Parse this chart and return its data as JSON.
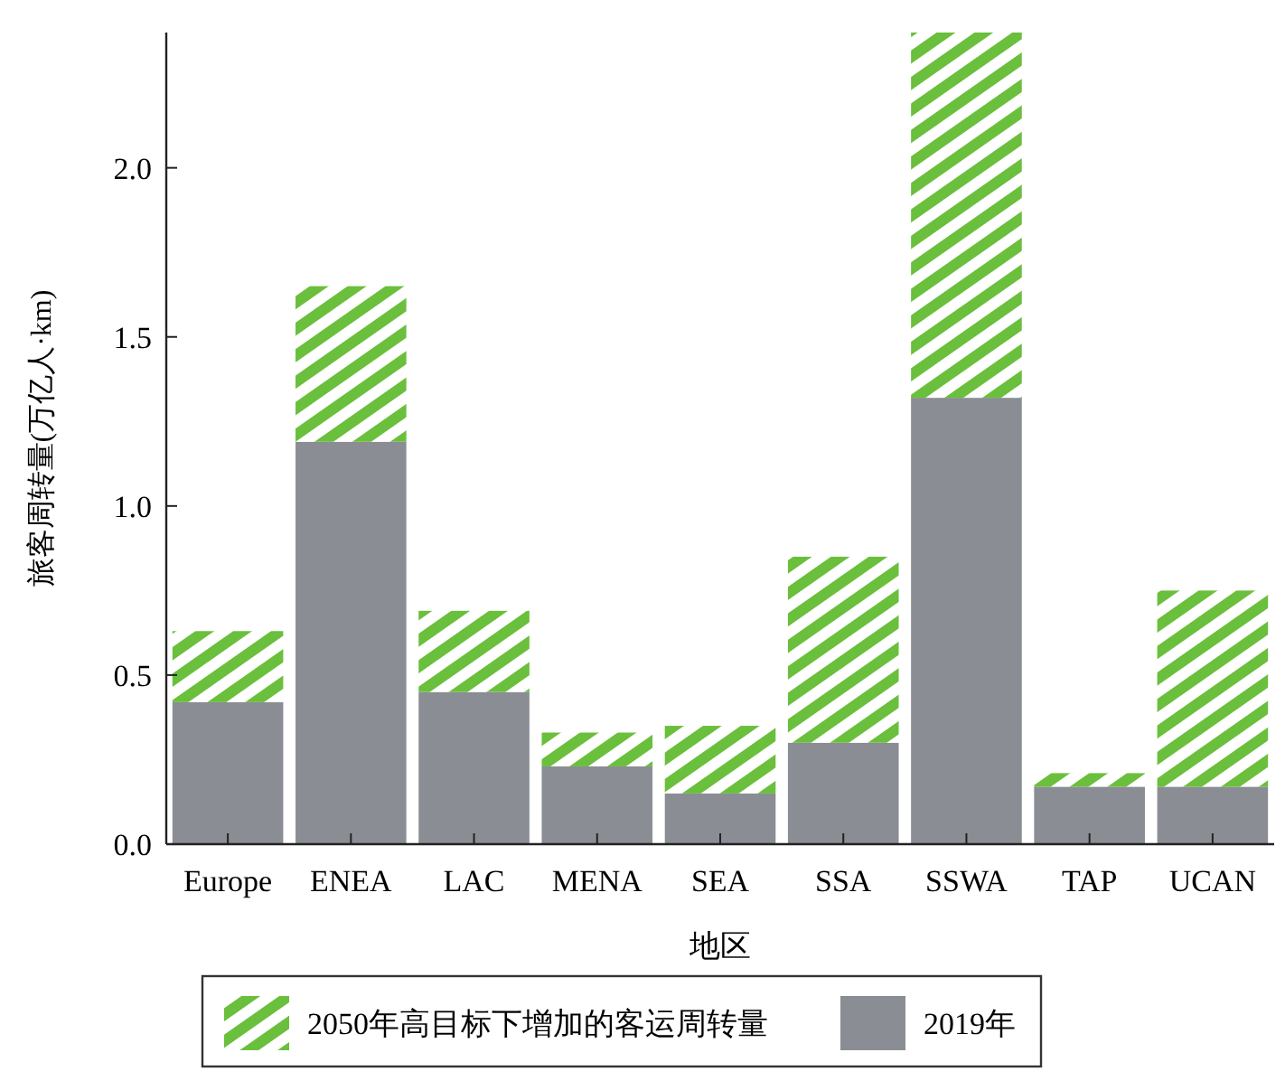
{
  "chart_data": {
    "type": "bar",
    "stacked": true,
    "xlabel": "地区",
    "ylabel": "旅客周转量(万亿人·km)",
    "categories": [
      "Europe",
      "ENEA",
      "LAC",
      "MENA",
      "SEA",
      "SSA",
      "SSWA",
      "TAP",
      "UCAN"
    ],
    "series": [
      {
        "name": "2019年",
        "color": "#8a8d93",
        "values": [
          0.42,
          1.19,
          0.45,
          0.23,
          0.15,
          0.3,
          1.32,
          0.17,
          0.17
        ]
      },
      {
        "name": "2050年高目标下增加的客运周转量",
        "color": "#6abf3c",
        "values": [
          0.21,
          0.46,
          0.24,
          0.1,
          0.2,
          0.55,
          1.08,
          0.04,
          0.58
        ]
      }
    ],
    "ylim": [
      0,
      2.4
    ],
    "yticks": [
      {
        "value": 0,
        "label": "0.0"
      },
      {
        "value": 0.5,
        "label": "0.5"
      },
      {
        "value": 1,
        "label": "1.0"
      },
      {
        "value": 1.5,
        "label": "1.5"
      },
      {
        "value": 2,
        "label": "2.0"
      }
    ],
    "legend": "bottom"
  }
}
